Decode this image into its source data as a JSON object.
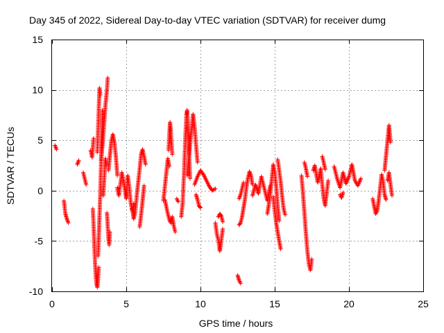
{
  "chart_data": {
    "type": "scatter",
    "title": "Day 345 of 2022, Sidereal Day-to-day VTEC variation (SDTVAR) for receiver dumg",
    "xlabel": "GPS time / hours",
    "ylabel": "SDTVAR / TECUs",
    "xlim": [
      0,
      25
    ],
    "ylim": [
      -10,
      15
    ],
    "xticks": [
      "0",
      "5",
      "10",
      "15",
      "20",
      "25"
    ],
    "yticks": [
      "-10",
      "-5",
      "0",
      "5",
      "10",
      "15"
    ],
    "grid": true,
    "marker": "+",
    "color": "#ff0000",
    "segments": [
      {
        "x": [
          0.2,
          0.3
        ],
        "y": [
          4.5,
          4.1
        ]
      },
      {
        "x": [
          0.8,
          0.9,
          1.0,
          1.1
        ],
        "y": [
          -1.0,
          -2.3,
          -2.8,
          -3.2
        ]
      },
      {
        "x": [
          1.7,
          1.8
        ],
        "y": [
          2.6,
          3.0
        ]
      },
      {
        "x": [
          2.1,
          2.2,
          2.3
        ],
        "y": [
          1.8,
          1.2,
          0.6
        ]
      },
      {
        "x": [
          2.6,
          2.7,
          2.8
        ],
        "y": [
          4.0,
          3.3,
          5.2
        ]
      },
      {
        "x": [
          2.75,
          2.8,
          2.85,
          2.9,
          2.95,
          3.0,
          3.05,
          3.1,
          3.15
        ],
        "y": [
          -1.8,
          -3.5,
          -5.5,
          -7.2,
          -8.5,
          -9.3,
          -9.6,
          -8.8,
          -7.6
        ]
      },
      {
        "x": [
          3.1,
          3.15,
          3.2,
          3.25,
          3.3,
          3.35,
          3.4
        ],
        "y": [
          -6.5,
          -4.5,
          -2.5,
          -0.2,
          2.5,
          5.5,
          8.0
        ]
      },
      {
        "x": [
          3.05,
          3.1,
          3.15,
          3.2,
          3.25
        ],
        "y": [
          3.8,
          6.0,
          8.2,
          10.2,
          9.5
        ]
      },
      {
        "x": [
          3.3,
          3.4,
          3.5,
          3.6,
          3.7,
          3.75
        ],
        "y": [
          3.0,
          4.5,
          6.5,
          8.5,
          10.0,
          11.2
        ]
      },
      {
        "x": [
          3.45,
          3.5,
          3.55,
          3.6,
          3.65
        ],
        "y": [
          -0.5,
          0.8,
          2.0,
          3.2,
          2.5
        ]
      },
      {
        "x": [
          3.7,
          3.75,
          3.8,
          3.85,
          3.9
        ],
        "y": [
          -2.2,
          -3.5,
          -4.8,
          -5.4,
          -4.1
        ]
      },
      {
        "x": [
          3.8,
          3.9,
          4.0,
          4.1,
          4.2,
          4.3,
          4.4
        ],
        "y": [
          2.0,
          3.5,
          5.0,
          5.6,
          4.8,
          3.4,
          1.5
        ]
      },
      {
        "x": [
          4.4,
          4.5,
          4.6,
          4.7,
          4.8,
          4.9,
          5.0,
          5.1,
          5.2,
          5.3,
          5.4,
          5.5
        ],
        "y": [
          0.3,
          -0.5,
          0.6,
          1.8,
          1.1,
          0.2,
          -0.8,
          1.5,
          0.4,
          -1.2,
          -2.0,
          -1.3
        ]
      },
      {
        "x": [
          5.4,
          5.5,
          5.6,
          5.7,
          5.8,
          5.9,
          6.0,
          6.1,
          6.2,
          6.3
        ],
        "y": [
          -1.8,
          -2.8,
          -2.2,
          -0.6,
          0.8,
          2.1,
          3.6,
          4.1,
          3.4,
          2.6
        ]
      },
      {
        "x": [
          5.9,
          6.0,
          6.1,
          6.2
        ],
        "y": [
          -3.6,
          -2.4,
          -1.0,
          0.5
        ]
      },
      {
        "x": [
          7.5,
          7.6,
          7.7,
          7.8,
          7.9
        ],
        "y": [
          -1.0,
          0.4,
          1.8,
          3.2,
          2.4
        ]
      },
      {
        "x": [
          7.6,
          7.7,
          7.8,
          7.9,
          8.0,
          8.1,
          8.2,
          8.3
        ],
        "y": [
          -0.9,
          -1.6,
          -2.3,
          -2.9,
          -3.2,
          -2.6,
          -3.5,
          -4.1
        ]
      },
      {
        "x": [
          7.85,
          7.9,
          7.95,
          8.0,
          8.05,
          8.1
        ],
        "y": [
          4.0,
          5.6,
          6.8,
          5.9,
          4.7,
          3.6
        ]
      },
      {
        "x": [
          8.4,
          8.5
        ],
        "y": [
          -0.8,
          -1.1
        ]
      },
      {
        "x": [
          8.7,
          8.8,
          8.85,
          8.9,
          8.95,
          9.0,
          9.05,
          9.1,
          9.15,
          9.2,
          9.25,
          9.3
        ],
        "y": [
          -2.6,
          -1.2,
          0.4,
          2.1,
          4.0,
          5.9,
          7.5,
          8.0,
          6.9,
          5.0,
          3.0,
          1.2
        ]
      },
      {
        "x": [
          9.1,
          9.2,
          9.3,
          9.4,
          9.5,
          9.6,
          9.7,
          9.8
        ],
        "y": [
          1.5,
          3.0,
          4.6,
          6.1,
          7.6,
          6.4,
          4.5,
          2.8
        ]
      },
      {
        "x": [
          9.6,
          9.8,
          10.0,
          10.2,
          10.4,
          10.6,
          10.8,
          11.0
        ],
        "y": [
          0.6,
          1.4,
          2.0,
          1.6,
          1.0,
          0.4,
          0.0,
          0.2
        ]
      },
      {
        "x": [
          9.7,
          9.8,
          9.9,
          10.0
        ],
        "y": [
          -0.4,
          -0.9,
          -1.5,
          -1.7
        ]
      },
      {
        "x": [
          11.0,
          11.1,
          11.2,
          11.3,
          11.4,
          11.5
        ],
        "y": [
          -3.2,
          -4.3,
          -4.9,
          -6.0,
          -5.0,
          -3.8
        ]
      },
      {
        "x": [
          11.2,
          11.3,
          11.4,
          11.5
        ],
        "y": [
          -2.6,
          -2.3,
          -2.5,
          -3.1
        ]
      },
      {
        "x": [
          12.5,
          12.6,
          12.7
        ],
        "y": [
          -8.4,
          -8.9,
          -9.2
        ]
      },
      {
        "x": [
          12.6,
          12.7,
          12.8,
          12.9,
          13.0,
          13.1,
          13.2,
          13.3,
          13.4,
          13.5
        ],
        "y": [
          -3.4,
          -3.2,
          -2.6,
          -1.7,
          -0.8,
          0.4,
          1.3,
          1.9,
          1.5,
          0.6
        ]
      },
      {
        "x": [
          12.6,
          12.7,
          12.8,
          12.9
        ],
        "y": [
          -0.8,
          -0.4,
          0.2,
          0.8
        ]
      },
      {
        "x": [
          13.5,
          13.7,
          13.9,
          14.1,
          14.3,
          14.5,
          14.7
        ],
        "y": [
          -0.5,
          0.6,
          -0.3,
          1.4,
          0.2,
          -1.0,
          0.5
        ]
      },
      {
        "x": [
          14.5,
          14.6,
          14.7,
          14.8,
          14.9,
          15.0,
          15.1,
          15.2,
          15.3
        ],
        "y": [
          -2.3,
          -1.4,
          -0.3,
          1.1,
          2.6,
          1.8,
          0.4,
          -1.5,
          -3.0
        ]
      },
      {
        "x": [
          14.9,
          15.0,
          15.1,
          15.2,
          15.3,
          15.4
        ],
        "y": [
          -0.6,
          -2.0,
          -3.2,
          -4.1,
          -5.0,
          -5.8
        ]
      },
      {
        "x": [
          15.2,
          15.3,
          15.4,
          15.5,
          15.6,
          15.7
        ],
        "y": [
          3.1,
          2.0,
          0.9,
          -0.6,
          -1.8,
          -2.4
        ]
      },
      {
        "x": [
          16.8,
          16.9,
          17.0,
          17.1,
          17.2,
          17.3,
          17.4,
          17.5
        ],
        "y": [
          1.5,
          -0.2,
          -2.2,
          -4.2,
          -6.0,
          -7.3,
          -7.9,
          -6.8
        ]
      },
      {
        "x": [
          17.0,
          17.1,
          17.2
        ],
        "y": [
          2.8,
          2.2,
          1.4
        ]
      },
      {
        "x": [
          17.6,
          17.7,
          17.8,
          17.9,
          18.0,
          18.1,
          18.2,
          18.3,
          18.4,
          18.5,
          18.6
        ],
        "y": [
          2.0,
          2.5,
          1.6,
          0.8,
          1.5,
          2.2,
          0.6,
          -0.8,
          -1.5,
          -0.3,
          1.0
        ]
      },
      {
        "x": [
          18.2,
          18.3,
          18.4
        ],
        "y": [
          3.4,
          2.8,
          2.1
        ]
      },
      {
        "x": [
          19.0,
          19.2,
          19.4,
          19.6,
          19.8,
          20.0,
          20.2,
          20.4,
          20.6,
          20.8
        ],
        "y": [
          2.4,
          1.2,
          0.3,
          1.8,
          0.7,
          1.4,
          2.6,
          1.0,
          0.5,
          1.2
        ]
      },
      {
        "x": [
          19.4,
          19.5,
          19.6
        ],
        "y": [
          -0.4,
          -0.7,
          -0.2
        ]
      },
      {
        "x": [
          21.6,
          21.7,
          21.8,
          21.9,
          22.0,
          22.1,
          22.2,
          22.3,
          22.4,
          22.5
        ],
        "y": [
          -0.8,
          -1.6,
          -2.3,
          -2.0,
          -1.0,
          0.3,
          1.6,
          0.9,
          -0.4,
          -0.9
        ]
      },
      {
        "x": [
          22.4,
          22.5,
          22.6,
          22.7,
          22.8
        ],
        "y": [
          2.0,
          3.5,
          5.0,
          6.5,
          4.8
        ]
      },
      {
        "x": [
          22.6,
          22.7,
          22.8,
          22.9
        ],
        "y": [
          1.0,
          1.8,
          0.6,
          -0.5
        ]
      }
    ]
  }
}
